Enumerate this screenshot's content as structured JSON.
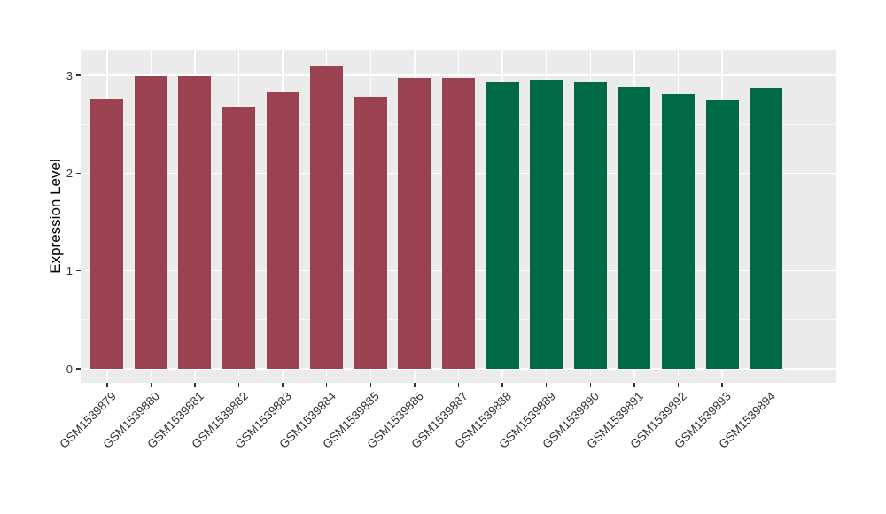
{
  "chart_data": {
    "type": "bar",
    "title": "",
    "xlabel": "",
    "ylabel": "Expression Level",
    "categories": [
      "GSM1539879",
      "GSM1539880",
      "GSM1539881",
      "GSM1539882",
      "GSM1539883",
      "GSM1539884",
      "GSM1539885",
      "GSM1539886",
      "GSM1539887",
      "GSM1539888",
      "GSM1539889",
      "GSM1539890",
      "GSM1539891",
      "GSM1539892",
      "GSM1539893",
      "GSM1539894"
    ],
    "values": [
      2.76,
      2.99,
      2.99,
      2.67,
      2.83,
      3.1,
      2.78,
      2.97,
      2.97,
      2.94,
      2.96,
      2.93,
      2.88,
      2.81,
      2.75,
      2.87
    ],
    "bar_colors": [
      "#9A4152",
      "#9A4152",
      "#9A4152",
      "#9A4152",
      "#9A4152",
      "#9A4152",
      "#9A4152",
      "#9A4152",
      "#9A4152",
      "#006948",
      "#006948",
      "#006948",
      "#006948",
      "#006948",
      "#006948",
      "#006948"
    ],
    "group_colors": {
      "left_group": "#9A4152",
      "right_group": "#006948"
    },
    "yticks": [
      0,
      1,
      2,
      3
    ],
    "ytick_labels": [
      "0",
      "1",
      "2",
      "3"
    ],
    "minor_gridlines": [
      0.5,
      1.5,
      2.5
    ],
    "ylim": [
      0,
      3.26
    ],
    "grid": true,
    "legend": "none",
    "panel_background": "#EBEBEB",
    "gridline_color": "#FFFFFF",
    "axis_text_color": "#333333"
  }
}
